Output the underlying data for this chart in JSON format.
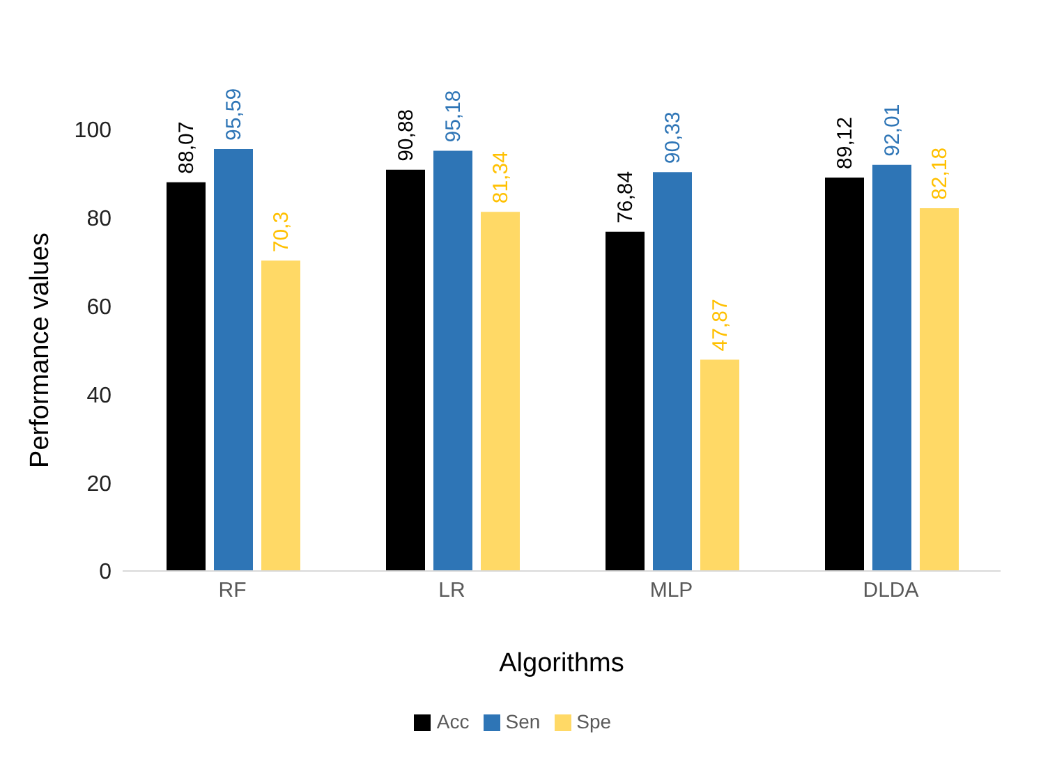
{
  "chart_data": {
    "type": "bar",
    "xlabel": "Algorithms",
    "ylabel": "Performance values",
    "categories": [
      "RF",
      "LR",
      "MLP",
      "DLDA"
    ],
    "series": [
      {
        "name": "Acc",
        "color": "#000000",
        "values": [
          88.07,
          90.88,
          76.84,
          89.12
        ],
        "value_labels": [
          "88,07",
          "90,88",
          "76,84",
          "89,12"
        ]
      },
      {
        "name": "Sen",
        "color": "#2e75b6",
        "values": [
          95.59,
          95.18,
          90.33,
          92.01
        ],
        "value_labels": [
          "95,59",
          "95,18",
          "90,33",
          "92,01"
        ]
      },
      {
        "name": "Spe",
        "color": "#ffd966",
        "values": [
          70.3,
          81.34,
          47.87,
          82.18
        ],
        "value_labels": [
          "70,3",
          "81,34",
          "47,87",
          "82,18"
        ]
      }
    ],
    "ylim": [
      0,
      100
    ],
    "yticks": [
      0,
      20,
      40,
      60,
      80,
      100
    ],
    "legend": "bottom"
  }
}
